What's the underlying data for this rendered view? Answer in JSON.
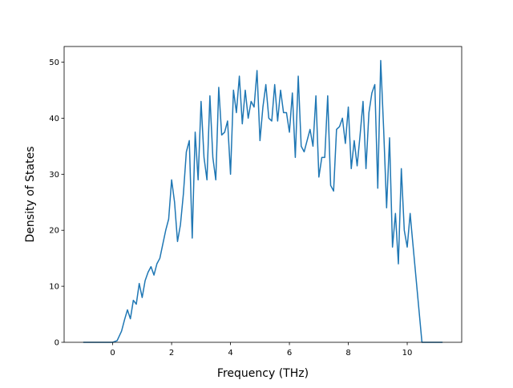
{
  "chart_data": {
    "type": "line",
    "title": "",
    "xlabel": "Frequency (THz)",
    "ylabel": "Density of States",
    "xlim": [
      -1.65,
      11.85
    ],
    "ylim": [
      0,
      52.8
    ],
    "xticks": [
      0,
      2,
      4,
      6,
      8,
      10
    ],
    "yticks": [
      0,
      10,
      20,
      30,
      40,
      50
    ],
    "grid": false,
    "legend": "none",
    "line_color": "#1f77b4",
    "series": [
      {
        "x": [
          -1.0,
          0.0,
          0.15,
          0.3,
          0.4,
          0.5,
          0.6,
          0.7,
          0.8,
          0.9,
          1.0,
          1.1,
          1.2,
          1.3,
          1.4,
          1.5,
          1.6,
          1.7,
          1.8,
          1.9,
          2.0,
          2.1,
          2.2,
          2.3,
          2.4,
          2.5,
          2.6,
          2.7,
          2.8,
          2.9,
          3.0,
          3.1,
          3.2,
          3.3,
          3.4,
          3.5,
          3.6,
          3.7,
          3.8,
          3.9,
          4.0,
          4.1,
          4.2,
          4.3,
          4.4,
          4.5,
          4.6,
          4.7,
          4.8,
          4.9,
          5.0,
          5.1,
          5.2,
          5.3,
          5.4,
          5.5,
          5.6,
          5.7,
          5.8,
          5.9,
          6.0,
          6.1,
          6.2,
          6.3,
          6.4,
          6.5,
          6.6,
          6.7,
          6.8,
          6.9,
          7.0,
          7.1,
          7.2,
          7.3,
          7.4,
          7.5,
          7.6,
          7.7,
          7.8,
          7.9,
          8.0,
          8.1,
          8.2,
          8.3,
          8.4,
          8.5,
          8.6,
          8.7,
          8.8,
          8.9,
          9.0,
          9.1,
          9.2,
          9.3,
          9.4,
          9.5,
          9.6,
          9.7,
          9.8,
          9.9,
          10.0,
          10.1,
          10.15,
          10.5,
          11.2
        ],
        "values": [
          0,
          0,
          0.3,
          2,
          4,
          5.8,
          4.2,
          7.5,
          6.8,
          10.5,
          8,
          11,
          12.5,
          13.5,
          12,
          14,
          15,
          17.5,
          20,
          22,
          29,
          25,
          18,
          21,
          26.5,
          34,
          36,
          18.6,
          37.5,
          29,
          43,
          33,
          29,
          44,
          33,
          29,
          45.5,
          37,
          37.5,
          39.5,
          30,
          45,
          41,
          47.5,
          39,
          45,
          40,
          43,
          42,
          48.5,
          36,
          42,
          46,
          40,
          39.5,
          46,
          39.5,
          45,
          41,
          41,
          37.5,
          44.5,
          33,
          47.5,
          35,
          34,
          36,
          38,
          35,
          44,
          29.5,
          33,
          33,
          44,
          28,
          27,
          38,
          38.5,
          40,
          35.5,
          42,
          31,
          36,
          31.5,
          37,
          43,
          31,
          41,
          44.5,
          46,
          27.5,
          50.3,
          38,
          24,
          36.5,
          17,
          23,
          14,
          31,
          20,
          17,
          23,
          20,
          0,
          0
        ]
      }
    ]
  }
}
